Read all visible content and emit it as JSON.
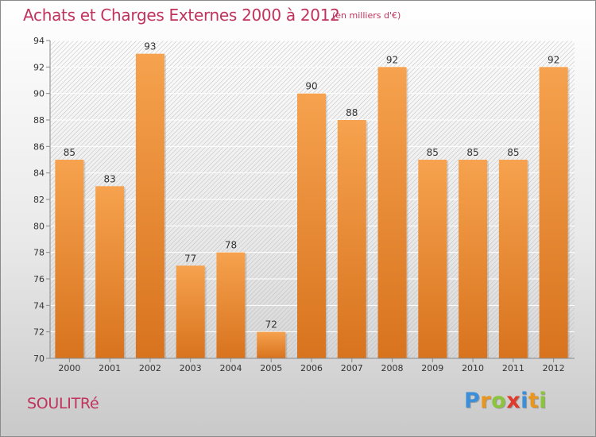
{
  "header": {
    "title": "Achats et Charges Externes 2000 à 2012",
    "subtitle": "(en milliers d'€)"
  },
  "footer": {
    "commune": "SOULITRé",
    "logo_letters": [
      "P",
      "r",
      "o",
      "x",
      "i",
      "t",
      "i"
    ],
    "logo_colors": [
      "#3a8fd8",
      "#e8961e",
      "#8cc43c",
      "#e03a2a",
      "#3a8fd8",
      "#e8961e",
      "#8cc43c"
    ]
  },
  "colors": {
    "title": "#c0335c",
    "bar_top": "#f6a24e",
    "bar_bottom": "#d8731e"
  },
  "chart_data": {
    "type": "bar",
    "title": "",
    "xlabel": "",
    "ylabel": "",
    "categories": [
      "2000",
      "2001",
      "2002",
      "2003",
      "2004",
      "2005",
      "2006",
      "2007",
      "2008",
      "2009",
      "2010",
      "2011",
      "2012"
    ],
    "values": [
      85,
      83,
      93,
      77,
      78,
      72,
      90,
      88,
      92,
      85,
      85,
      85,
      92
    ],
    "ylim": [
      70,
      94
    ],
    "yticks": [
      70,
      72,
      74,
      76,
      78,
      80,
      82,
      84,
      86,
      88,
      90,
      92,
      94
    ],
    "grid": true,
    "data_labels": true
  }
}
